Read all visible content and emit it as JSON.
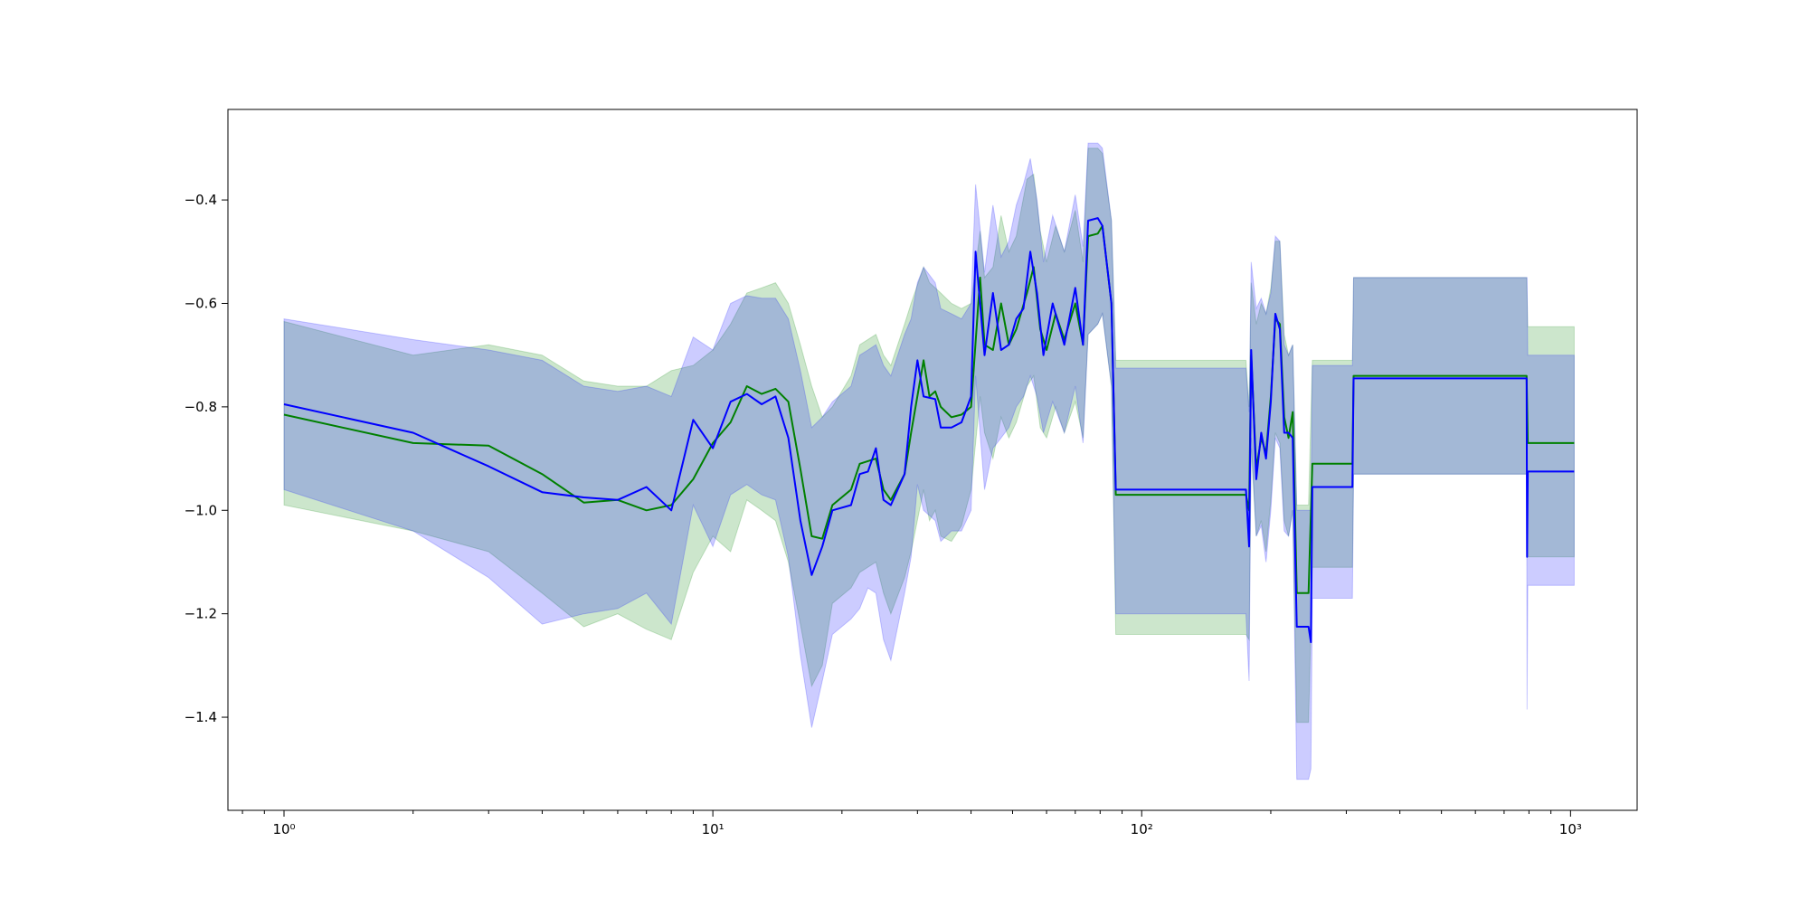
{
  "chart_data": {
    "type": "line",
    "title": "",
    "xlabel": "",
    "ylabel": "",
    "xscale": "log",
    "xlim": [
      0.74,
      1430
    ],
    "ylim": [
      -1.58,
      -0.225
    ],
    "grid": false,
    "x_ticks": [
      {
        "value": 1,
        "label": "10⁰"
      },
      {
        "value": 10,
        "label": "10¹"
      },
      {
        "value": 100,
        "label": "10²"
      },
      {
        "value": 1000,
        "label": "10³"
      }
    ],
    "y_ticks": [
      {
        "value": -0.4,
        "label": "−0.4"
      },
      {
        "value": -0.6,
        "label": "−0.6"
      },
      {
        "value": -0.8,
        "label": "−0.8"
      },
      {
        "value": -1.0,
        "label": "−1.0"
      },
      {
        "value": -1.2,
        "label": "−1.2"
      },
      {
        "value": -1.4,
        "label": "−1.4"
      }
    ],
    "series": [
      {
        "color": "#008000",
        "band_color": "#008000",
        "band_opacity": 0.2,
        "points": [
          [
            1,
            -0.815,
            -0.99,
            -0.635
          ],
          [
            2,
            -0.87,
            -1.04,
            -0.7
          ],
          [
            3,
            -0.875,
            -1.08,
            -0.68
          ],
          [
            4,
            -0.93,
            -1.16,
            -0.7
          ],
          [
            5,
            -0.985,
            -1.225,
            -0.75
          ],
          [
            6,
            -0.98,
            -1.2,
            -0.76
          ],
          [
            7,
            -1.0,
            -1.23,
            -0.76
          ],
          [
            8,
            -0.99,
            -1.25,
            -0.73
          ],
          [
            9,
            -0.94,
            -1.12,
            -0.72
          ],
          [
            10,
            -0.87,
            -1.05,
            -0.69
          ],
          [
            11,
            -0.83,
            -1.08,
            -0.64
          ],
          [
            12,
            -0.76,
            -0.98,
            -0.58
          ],
          [
            13,
            -0.775,
            -1.0,
            -0.57
          ],
          [
            14,
            -0.765,
            -1.02,
            -0.56
          ],
          [
            15,
            -0.79,
            -1.1,
            -0.6
          ],
          [
            16,
            -0.92,
            -1.22,
            -0.68
          ],
          [
            17,
            -1.05,
            -1.34,
            -0.76
          ],
          [
            18,
            -1.055,
            -1.3,
            -0.82
          ],
          [
            19,
            -0.99,
            -1.18,
            -0.8
          ],
          [
            21,
            -0.96,
            -1.15,
            -0.74
          ],
          [
            22,
            -0.91,
            -1.12,
            -0.68
          ],
          [
            24,
            -0.9,
            -1.1,
            -0.66
          ],
          [
            25,
            -0.96,
            -1.16,
            -0.7
          ],
          [
            26,
            -0.98,
            -1.2,
            -0.72
          ],
          [
            28,
            -0.93,
            -1.13,
            -0.64
          ],
          [
            29,
            -0.85,
            -1.08,
            -0.6
          ],
          [
            31,
            -0.71,
            -0.96,
            -0.53
          ],
          [
            32,
            -0.78,
            -1.02,
            -0.56
          ],
          [
            33,
            -0.77,
            -1.0,
            -0.57
          ],
          [
            34,
            -0.8,
            -1.05,
            -0.58
          ],
          [
            36,
            -0.82,
            -1.06,
            -0.6
          ],
          [
            38,
            -0.815,
            -1.03,
            -0.61
          ],
          [
            40,
            -0.8,
            -0.96,
            -0.6
          ],
          [
            42,
            -0.55,
            -0.78,
            -0.46
          ],
          [
            43,
            -0.68,
            -0.85,
            -0.55
          ],
          [
            45,
            -0.69,
            -0.9,
            -0.53
          ],
          [
            47,
            -0.6,
            -0.82,
            -0.43
          ],
          [
            49,
            -0.68,
            -0.86,
            -0.5
          ],
          [
            51,
            -0.65,
            -0.83,
            -0.47
          ],
          [
            54,
            -0.58,
            -0.76,
            -0.36
          ],
          [
            56,
            -0.53,
            -0.74,
            -0.35
          ],
          [
            58,
            -0.65,
            -0.84,
            -0.46
          ],
          [
            60,
            -0.69,
            -0.86,
            -0.52
          ],
          [
            63,
            -0.62,
            -0.8,
            -0.45
          ],
          [
            66,
            -0.67,
            -0.85,
            -0.5
          ],
          [
            70,
            -0.6,
            -0.79,
            -0.42
          ],
          [
            73,
            -0.68,
            -0.86,
            -0.52
          ],
          [
            75,
            -0.47,
            -0.66,
            -0.3
          ],
          [
            79,
            -0.465,
            -0.64,
            -0.3
          ],
          [
            81,
            -0.45,
            -0.62,
            -0.31
          ],
          [
            85,
            -0.6,
            -0.76,
            -0.44
          ],
          [
            87,
            -0.97,
            -1.24,
            -0.71
          ],
          [
            175,
            -0.97,
            -1.24,
            -0.71
          ],
          [
            178,
            -1.0,
            -1.25,
            -0.8
          ],
          [
            180,
            -0.7,
            -0.88,
            -0.56
          ],
          [
            185,
            -0.92,
            -1.05,
            -0.64
          ],
          [
            190,
            -0.86,
            -1.02,
            -0.6
          ],
          [
            195,
            -0.89,
            -1.08,
            -0.62
          ],
          [
            200,
            -0.78,
            -0.98,
            -0.57
          ],
          [
            205,
            -0.63,
            -0.85,
            -0.48
          ],
          [
            210,
            -0.64,
            -0.87,
            -0.48
          ],
          [
            215,
            -0.82,
            -1.02,
            -0.66
          ],
          [
            220,
            -0.86,
            -1.05,
            -0.7
          ],
          [
            225,
            -0.81,
            -1.0,
            -0.68
          ],
          [
            230,
            -1.16,
            -1.41,
            -0.99
          ],
          [
            245,
            -1.16,
            -1.41,
            -0.99
          ],
          [
            250,
            -0.91,
            -1.11,
            -0.71
          ],
          [
            310,
            -0.91,
            -1.11,
            -0.71
          ],
          [
            312,
            -0.74,
            -0.93,
            -0.55
          ],
          [
            790,
            -0.74,
            -0.93,
            -0.55
          ],
          [
            795,
            -0.87,
            -1.09,
            -0.645
          ],
          [
            1020,
            -0.87,
            -1.09,
            -0.645
          ]
        ]
      },
      {
        "color": "#0000ff",
        "band_color": "#0000ff",
        "band_opacity": 0.2,
        "points": [
          [
            1,
            -0.795,
            -0.96,
            -0.63
          ],
          [
            2,
            -0.85,
            -1.04,
            -0.67
          ],
          [
            3,
            -0.915,
            -1.13,
            -0.69
          ],
          [
            4,
            -0.965,
            -1.22,
            -0.71
          ],
          [
            5,
            -0.975,
            -1.2,
            -0.76
          ],
          [
            6,
            -0.98,
            -1.19,
            -0.77
          ],
          [
            7,
            -0.955,
            -1.16,
            -0.76
          ],
          [
            8,
            -1.0,
            -1.22,
            -0.78
          ],
          [
            9,
            -0.825,
            -0.99,
            -0.665
          ],
          [
            10,
            -0.88,
            -1.07,
            -0.69
          ],
          [
            11,
            -0.79,
            -0.97,
            -0.6
          ],
          [
            12,
            -0.775,
            -0.95,
            -0.585
          ],
          [
            13,
            -0.795,
            -0.97,
            -0.59
          ],
          [
            14,
            -0.78,
            -0.98,
            -0.59
          ],
          [
            15,
            -0.86,
            -1.09,
            -0.63
          ],
          [
            16,
            -1.02,
            -1.28,
            -0.73
          ],
          [
            17,
            -1.125,
            -1.42,
            -0.84
          ],
          [
            18,
            -1.07,
            -1.33,
            -0.82
          ],
          [
            19,
            -1.0,
            -1.24,
            -0.79
          ],
          [
            21,
            -0.99,
            -1.21,
            -0.76
          ],
          [
            22,
            -0.93,
            -1.19,
            -0.7
          ],
          [
            23,
            -0.925,
            -1.15,
            -0.69
          ],
          [
            24,
            -0.88,
            -1.16,
            -0.68
          ],
          [
            25,
            -0.98,
            -1.25,
            -0.72
          ],
          [
            26,
            -0.99,
            -1.29,
            -0.74
          ],
          [
            28,
            -0.93,
            -1.16,
            -0.66
          ],
          [
            29,
            -0.8,
            -1.09,
            -0.63
          ],
          [
            30,
            -0.71,
            -0.95,
            -0.56
          ],
          [
            31,
            -0.78,
            -1.0,
            -0.53
          ],
          [
            33,
            -0.785,
            -1.02,
            -0.56
          ],
          [
            34,
            -0.84,
            -1.06,
            -0.61
          ],
          [
            36,
            -0.84,
            -1.04,
            -0.62
          ],
          [
            38,
            -0.83,
            -1.04,
            -0.63
          ],
          [
            40,
            -0.78,
            -1.0,
            -0.6
          ],
          [
            41,
            -0.5,
            -0.74,
            -0.37
          ],
          [
            43,
            -0.7,
            -0.96,
            -0.54
          ],
          [
            45,
            -0.58,
            -0.88,
            -0.41
          ],
          [
            47,
            -0.69,
            -0.86,
            -0.51
          ],
          [
            49,
            -0.68,
            -0.84,
            -0.48
          ],
          [
            51,
            -0.63,
            -0.8,
            -0.41
          ],
          [
            53,
            -0.61,
            -0.78,
            -0.37
          ],
          [
            55,
            -0.5,
            -0.74,
            -0.32
          ],
          [
            57,
            -0.58,
            -0.78,
            -0.4
          ],
          [
            59,
            -0.7,
            -0.85,
            -0.52
          ],
          [
            62,
            -0.6,
            -0.79,
            -0.43
          ],
          [
            66,
            -0.68,
            -0.85,
            -0.5
          ],
          [
            70,
            -0.57,
            -0.76,
            -0.39
          ],
          [
            73,
            -0.68,
            -0.87,
            -0.49
          ],
          [
            75,
            -0.44,
            -0.66,
            -0.29
          ],
          [
            79,
            -0.435,
            -0.64,
            -0.29
          ],
          [
            81,
            -0.45,
            -0.62,
            -0.3
          ],
          [
            85,
            -0.6,
            -0.76,
            -0.44
          ],
          [
            87,
            -0.96,
            -1.2,
            -0.725
          ],
          [
            175,
            -0.96,
            -1.2,
            -0.725
          ],
          [
            178,
            -1.07,
            -1.33,
            -0.81
          ],
          [
            180,
            -0.69,
            -0.86,
            -0.52
          ],
          [
            185,
            -0.94,
            -1.05,
            -0.61
          ],
          [
            190,
            -0.85,
            -1.03,
            -0.59
          ],
          [
            195,
            -0.9,
            -1.1,
            -0.62
          ],
          [
            200,
            -0.79,
            -1.0,
            -0.58
          ],
          [
            205,
            -0.62,
            -0.86,
            -0.47
          ],
          [
            210,
            -0.65,
            -0.88,
            -0.48
          ],
          [
            215,
            -0.85,
            -1.04,
            -0.68
          ],
          [
            220,
            -0.85,
            -1.05,
            -0.7
          ],
          [
            225,
            -0.86,
            -1.0,
            -0.68
          ],
          [
            230,
            -1.225,
            -1.52,
            -1.0
          ],
          [
            245,
            -1.225,
            -1.52,
            -1.0
          ],
          [
            248,
            -1.255,
            -1.5,
            -1.0
          ],
          [
            250,
            -0.955,
            -1.17,
            -0.72
          ],
          [
            310,
            -0.955,
            -1.17,
            -0.72
          ],
          [
            312,
            -0.745,
            -0.93,
            -0.55
          ],
          [
            790,
            -0.745,
            -0.93,
            -0.55
          ],
          [
            792,
            -1.09,
            -1.385,
            -0.55
          ],
          [
            795,
            -0.925,
            -1.145,
            -0.7
          ],
          [
            1020,
            -0.925,
            -1.145,
            -0.7
          ]
        ]
      }
    ]
  }
}
